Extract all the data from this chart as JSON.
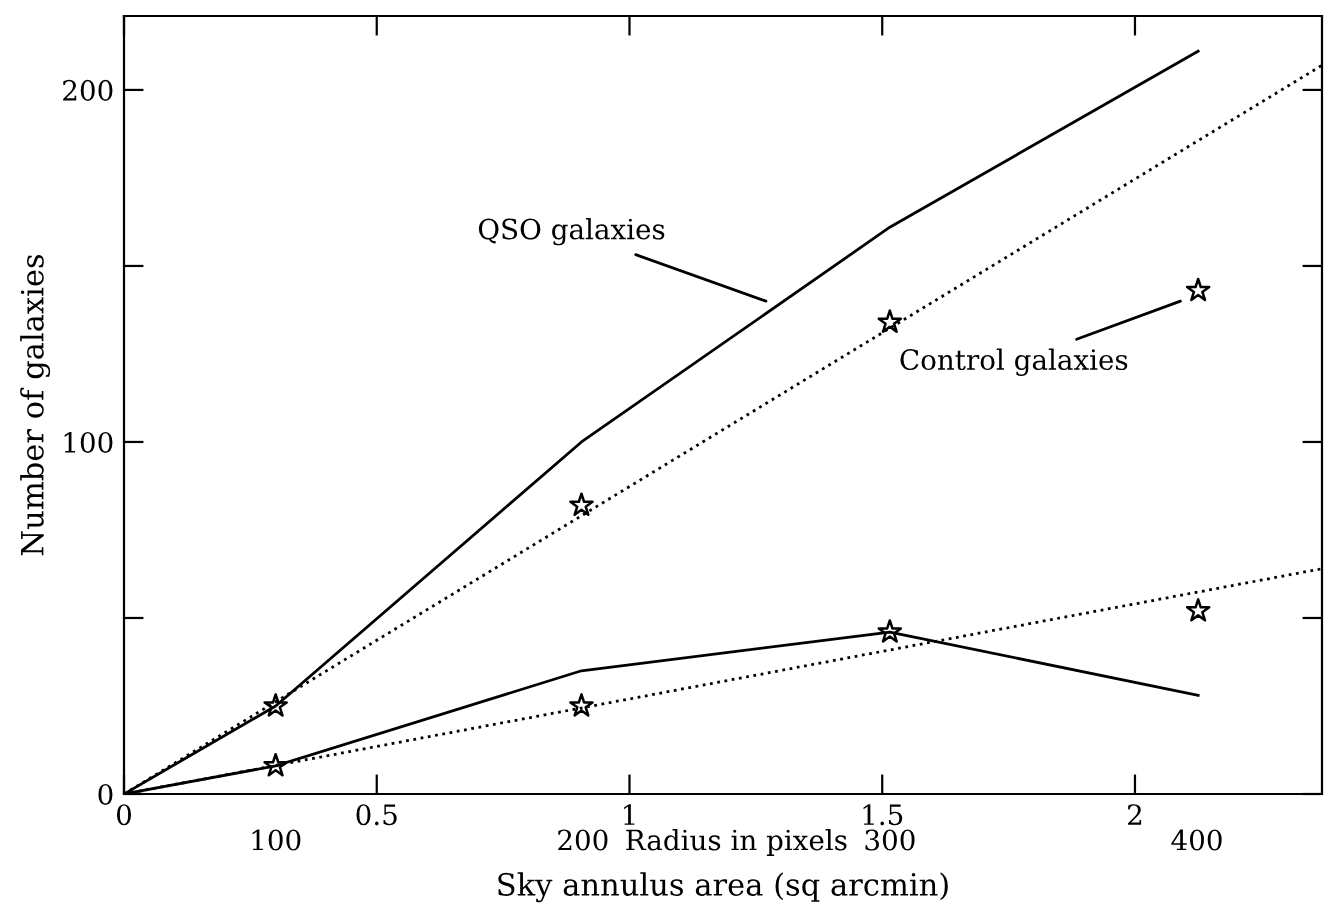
{
  "chart_data": {
    "type": "line",
    "xlabel": "Sky annulus area (sq arcmin)",
    "ylabel": "Number of galaxies",
    "x2label": "Radius in pixels",
    "xlim": [
      0,
      2.37
    ],
    "xticks": [
      0,
      0.5,
      1,
      1.5,
      2
    ],
    "x2lim": [
      50.6,
      440.7
    ],
    "x2ticks": [
      100,
      200,
      300,
      400
    ],
    "ylim": [
      0,
      221
    ],
    "yticks": [
      0,
      {
        "value": 50,
        "label": null
      },
      100,
      {
        "value": 150,
        "label": null
      },
      200
    ],
    "grid": false,
    "legend": false,
    "series": [
      {
        "type": "scatter",
        "marker": "star",
        "color": "#000000",
        "x": [
          0.3,
          0.905,
          1.515,
          2.125
        ],
        "values": [
          25,
          82,
          134,
          143
        ]
      },
      {
        "type": "scatter",
        "marker": "star",
        "color": "#000000",
        "x": [
          0.3,
          0.905,
          1.515,
          2.125
        ],
        "values": [
          8,
          25,
          46,
          52
        ]
      },
      {
        "line_style": "solid",
        "color": "#000000",
        "x": [
          0,
          0.3,
          0.905,
          1.515,
          2.125
        ],
        "values": [
          0,
          25,
          100,
          161,
          211
        ]
      },
      {
        "line_style": "solid",
        "color": "#000000",
        "x": [
          0,
          0.3,
          0.905,
          1.515,
          2.125
        ],
        "values": [
          0,
          8,
          35,
          46,
          28
        ]
      },
      {
        "line_style": "dotted",
        "color": "#000000",
        "x": [
          0,
          2.37
        ],
        "values": [
          0,
          207
        ]
      },
      {
        "line_style": "dotted",
        "color": "#000000",
        "x": [
          0,
          2.37
        ],
        "values": [
          0,
          64
        ]
      }
    ],
    "annotations": [
      {
        "text": "QSO galaxies",
        "x": 1.27,
        "y": 140
      },
      {
        "text": "Control galaxies",
        "x": 2.09,
        "y": 140
      }
    ]
  }
}
